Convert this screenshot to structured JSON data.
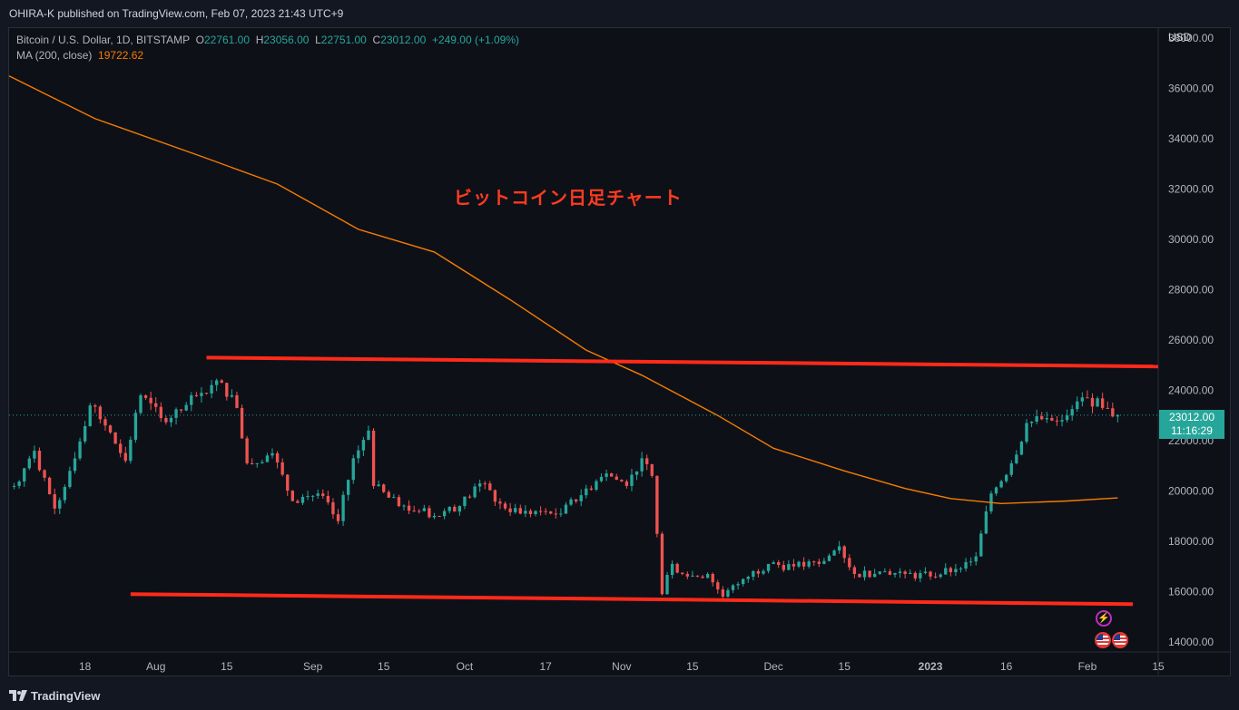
{
  "header": {
    "published": "OHIRA-K published on TradingView.com, Feb 07, 2023 21:43 UTC+9"
  },
  "legend": {
    "symbol": "Bitcoin / U.S. Dollar, 1D, BITSTAMP",
    "o_label": "O",
    "o_value": "22761.00",
    "h_label": "H",
    "h_value": "23056.00",
    "l_label": "L",
    "l_value": "22751.00",
    "c_label": "C",
    "c_value": "23012.00",
    "change": "+249.00 (+1.09%)",
    "ma_label": "MA (200, close)",
    "ma_value": "19722.62"
  },
  "annotation": "ビットコイン日足チャート",
  "price_axis": {
    "currency": "USD",
    "last_price": "23012.00",
    "countdown": "11:16:29"
  },
  "footer": {
    "brand": "TradingView"
  },
  "icons": [
    "lightning-icon",
    "us-flag-icon",
    "us-flag-icon"
  ],
  "colors": {
    "up": "#26a69a",
    "down": "#ef5350",
    "ma": "#f57c00",
    "trendline": "#ff2a1a",
    "annotation": "#ff3b1f"
  },
  "chart_data": {
    "type": "candlestick",
    "symbol": "Bitcoin / U.S. Dollar",
    "interval": "1D",
    "exchange": "BITSTAMP",
    "ylim": [
      13600,
      38400
    ],
    "y_ticks": [
      14000,
      16000,
      18000,
      20000,
      22000,
      24000,
      26000,
      28000,
      30000,
      32000,
      34000,
      36000,
      38000
    ],
    "y_tick_labels": [
      "14000.00",
      "16000.00",
      "18000.00",
      "20000.00",
      "22000.00",
      "24000.00",
      "26000.00",
      "28000.00",
      "30000.00",
      "32000.00",
      "34000.00",
      "36000.00",
      "38000.00"
    ],
    "x_labels": [
      {
        "label": "18",
        "date": "2022-07-18"
      },
      {
        "label": "Aug",
        "date": "2022-08-01"
      },
      {
        "label": "15",
        "date": "2022-08-15"
      },
      {
        "label": "Sep",
        "date": "2022-09-01"
      },
      {
        "label": "15",
        "date": "2022-09-15"
      },
      {
        "label": "Oct",
        "date": "2022-10-01"
      },
      {
        "label": "17",
        "date": "2022-10-17"
      },
      {
        "label": "Nov",
        "date": "2022-11-01"
      },
      {
        "label": "15",
        "date": "2022-11-15"
      },
      {
        "label": "Dec",
        "date": "2022-12-01"
      },
      {
        "label": "15",
        "date": "2022-12-15"
      },
      {
        "label": "2023",
        "date": "2023-01-01"
      },
      {
        "label": "16",
        "date": "2023-01-16"
      },
      {
        "label": "Feb",
        "date": "2023-02-01"
      },
      {
        "label": "15",
        "date": "2023-02-15"
      }
    ],
    "xlim": [
      "2022-07-03",
      "2023-02-15"
    ],
    "close_series": [
      {
        "date": "2022-07-04",
        "close": 20200
      },
      {
        "date": "2022-07-08",
        "close": 21600
      },
      {
        "date": "2022-07-12",
        "close": 19300
      },
      {
        "date": "2022-07-15",
        "close": 20800
      },
      {
        "date": "2022-07-19",
        "close": 23400
      },
      {
        "date": "2022-07-22",
        "close": 22600
      },
      {
        "date": "2022-07-26",
        "close": 21200
      },
      {
        "date": "2022-07-29",
        "close": 23800
      },
      {
        "date": "2022-08-02",
        "close": 22900
      },
      {
        "date": "2022-08-06",
        "close": 23200
      },
      {
        "date": "2022-08-10",
        "close": 23900
      },
      {
        "date": "2022-08-14",
        "close": 24300
      },
      {
        "date": "2022-08-17",
        "close": 23300
      },
      {
        "date": "2022-08-19",
        "close": 21100
      },
      {
        "date": "2022-08-24",
        "close": 21500
      },
      {
        "date": "2022-08-28",
        "close": 19600
      },
      {
        "date": "2022-09-02",
        "close": 19900
      },
      {
        "date": "2022-09-06",
        "close": 18800
      },
      {
        "date": "2022-09-09",
        "close": 21300
      },
      {
        "date": "2022-09-12",
        "close": 22400
      },
      {
        "date": "2022-09-13",
        "close": 20200
      },
      {
        "date": "2022-09-18",
        "close": 19400
      },
      {
        "date": "2022-09-22",
        "close": 19200
      },
      {
        "date": "2022-09-26",
        "close": 19000
      },
      {
        "date": "2022-09-30",
        "close": 19400
      },
      {
        "date": "2022-10-04",
        "close": 20300
      },
      {
        "date": "2022-10-08",
        "close": 19500
      },
      {
        "date": "2022-10-12",
        "close": 19100
      },
      {
        "date": "2022-10-16",
        "close": 19200
      },
      {
        "date": "2022-10-20",
        "close": 19100
      },
      {
        "date": "2022-10-25",
        "close": 20100
      },
      {
        "date": "2022-10-29",
        "close": 20700
      },
      {
        "date": "2022-11-02",
        "close": 20200
      },
      {
        "date": "2022-11-05",
        "close": 21300
      },
      {
        "date": "2022-11-07",
        "close": 20600
      },
      {
        "date": "2022-11-09",
        "close": 15900
      },
      {
        "date": "2022-11-11",
        "close": 17100
      },
      {
        "date": "2022-11-14",
        "close": 16600
      },
      {
        "date": "2022-11-18",
        "close": 16700
      },
      {
        "date": "2022-11-21",
        "close": 15800
      },
      {
        "date": "2022-11-25",
        "close": 16500
      },
      {
        "date": "2022-11-30",
        "close": 17100
      },
      {
        "date": "2022-12-05",
        "close": 17000
      },
      {
        "date": "2022-12-10",
        "close": 17100
      },
      {
        "date": "2022-12-14",
        "close": 17800
      },
      {
        "date": "2022-12-17",
        "close": 16700
      },
      {
        "date": "2022-12-22",
        "close": 16800
      },
      {
        "date": "2022-12-27",
        "close": 16700
      },
      {
        "date": "2023-01-01",
        "close": 16600
      },
      {
        "date": "2023-01-06",
        "close": 16900
      },
      {
        "date": "2023-01-10",
        "close": 17400
      },
      {
        "date": "2023-01-13",
        "close": 19900
      },
      {
        "date": "2023-01-17",
        "close": 21100
      },
      {
        "date": "2023-01-20",
        "close": 22700
      },
      {
        "date": "2023-01-24",
        "close": 22900
      },
      {
        "date": "2023-01-28",
        "close": 23000
      },
      {
        "date": "2023-02-01",
        "close": 23700
      },
      {
        "date": "2023-02-04",
        "close": 23300
      },
      {
        "date": "2023-02-07",
        "close": 23012
      }
    ],
    "ma_series": {
      "name": "MA (200, close)",
      "points": [
        {
          "date": "2022-07-03",
          "value": 36500
        },
        {
          "date": "2022-07-20",
          "value": 34800
        },
        {
          "date": "2022-08-10",
          "value": 33300
        },
        {
          "date": "2022-08-25",
          "value": 32200
        },
        {
          "date": "2022-09-10",
          "value": 30400
        },
        {
          "date": "2022-09-25",
          "value": 29500
        },
        {
          "date": "2022-10-10",
          "value": 27600
        },
        {
          "date": "2022-10-25",
          "value": 25600
        },
        {
          "date": "2022-11-05",
          "value": 24600
        },
        {
          "date": "2022-11-20",
          "value": 23000
        },
        {
          "date": "2022-12-01",
          "value": 21700
        },
        {
          "date": "2022-12-15",
          "value": 20800
        },
        {
          "date": "2022-12-27",
          "value": 20100
        },
        {
          "date": "2023-01-05",
          "value": 19700
        },
        {
          "date": "2023-01-15",
          "value": 19500
        },
        {
          "date": "2023-01-28",
          "value": 19600
        },
        {
          "date": "2023-02-07",
          "value": 19722.62
        }
      ]
    },
    "trendlines": [
      {
        "from": {
          "date": "2022-08-11",
          "value": 25300
        },
        "to": {
          "date": "2023-02-15",
          "value": 24950
        }
      },
      {
        "from": {
          "date": "2022-07-27",
          "value": 15900
        },
        "to": {
          "date": "2023-02-10",
          "value": 15500
        }
      }
    ],
    "last_price": 23012
  }
}
